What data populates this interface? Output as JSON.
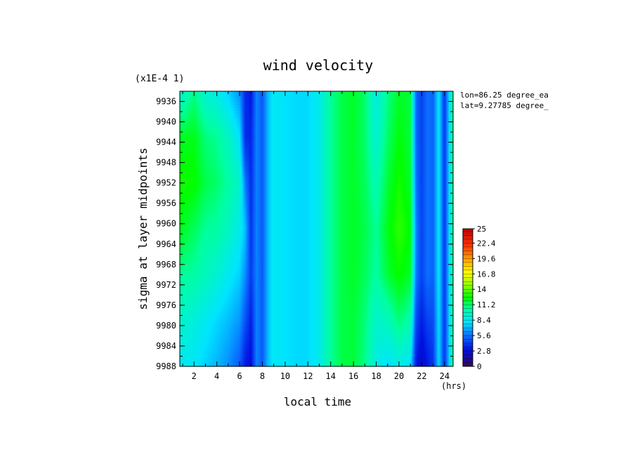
{
  "chart_data": {
    "type": "heatmap",
    "title": "wind velocity",
    "xlabel": "local time",
    "ylabel": "sigma at layer midpoints",
    "x_unit_label": "(hrs)",
    "y_scale_label": "(x1E-4 1)",
    "annotations": [
      "lon=86.25 degree_ea",
      "lat=9.27785 degree_"
    ],
    "xlim": [
      0.75,
      24.75
    ],
    "ylim": [
      9988,
      9934
    ],
    "x_ticks": [
      "2",
      "4",
      "6",
      "8",
      "10",
      "12",
      "14",
      "16",
      "18",
      "20",
      "22",
      "24"
    ],
    "y_ticks": [
      "9936",
      "9940",
      "9944",
      "9948",
      "9952",
      "9956",
      "9960",
      "9964",
      "9968",
      "9972",
      "9976",
      "9980",
      "9984",
      "9988"
    ],
    "colorbar": {
      "min": 0,
      "max": 25,
      "tick_labels": [
        "25",
        "22.4",
        "19.6",
        "16.8",
        "14",
        "11.2",
        "8.4",
        "5.6",
        "2.8",
        "0"
      ]
    },
    "x_hours": [
      0.75,
      2,
      3,
      4,
      5,
      6,
      6.5,
      7,
      7.5,
      8,
      8.5,
      9,
      10,
      11,
      12,
      13,
      14,
      15,
      16,
      17,
      18,
      19,
      20,
      21,
      21.5,
      22,
      22.5,
      23,
      23.5,
      24,
      24.75
    ],
    "profiles": [
      [
        9.0,
        10.8,
        9.2,
        8.6,
        7.6,
        6.2,
        3.8,
        3.2,
        6.0,
        5.0,
        7.2,
        8.4,
        8.0,
        7.8,
        7.8,
        8.6,
        10.6,
        11.6,
        12.0,
        11.2,
        8.8,
        10.8,
        12.0,
        11.8,
        5.4,
        4.4,
        5.6,
        5.2,
        8.2,
        4.0,
        11.0
      ],
      [
        12.0,
        12.2,
        11.0,
        10.6,
        9.6,
        8.0,
        3.8,
        3.6,
        6.0,
        5.0,
        7.2,
        8.4,
        8.0,
        7.8,
        7.8,
        8.6,
        10.6,
        11.6,
        12.0,
        11.2,
        9.2,
        11.2,
        12.4,
        11.8,
        5.4,
        4.4,
        5.6,
        5.2,
        8.2,
        4.0,
        11.0
      ],
      [
        12.8,
        12.6,
        11.6,
        11.2,
        10.4,
        9.4,
        5.8,
        3.8,
        6.0,
        5.0,
        7.2,
        8.4,
        8.0,
        7.8,
        7.8,
        8.6,
        10.6,
        11.6,
        12.0,
        11.4,
        10.0,
        11.8,
        12.8,
        12.0,
        5.6,
        4.4,
        5.6,
        5.2,
        8.2,
        4.0,
        11.0
      ],
      [
        12.2,
        11.4,
        10.6,
        10.4,
        9.6,
        8.6,
        7.2,
        4.0,
        6.0,
        5.0,
        7.2,
        8.4,
        8.0,
        7.8,
        7.8,
        8.6,
        10.6,
        11.6,
        12.0,
        11.6,
        10.6,
        12.2,
        13.2,
        12.4,
        6.0,
        4.4,
        5.6,
        5.2,
        8.2,
        4.0,
        11.0
      ],
      [
        10.6,
        10.4,
        9.8,
        9.2,
        8.4,
        7.6,
        6.2,
        4.2,
        6.0,
        5.0,
        7.2,
        8.4,
        8.0,
        7.8,
        7.8,
        8.6,
        10.6,
        11.6,
        12.0,
        11.4,
        10.4,
        11.8,
        12.6,
        12.0,
        5.8,
        4.4,
        5.6,
        5.2,
        8.2,
        4.0,
        11.0
      ],
      [
        9.4,
        9.0,
        8.4,
        7.8,
        7.2,
        6.4,
        4.8,
        3.4,
        6.0,
        5.0,
        7.2,
        8.4,
        8.0,
        7.8,
        7.8,
        8.6,
        10.6,
        11.6,
        11.8,
        11.0,
        9.4,
        9.8,
        11.0,
        10.2,
        4.6,
        3.4,
        4.4,
        4.6,
        8.0,
        4.0,
        10.8
      ],
      [
        8.4,
        8.2,
        7.6,
        7.0,
        6.2,
        5.0,
        3.2,
        2.8,
        6.0,
        5.0,
        7.2,
        8.4,
        8.0,
        7.8,
        7.8,
        8.6,
        10.6,
        11.6,
        11.8,
        10.8,
        8.8,
        8.0,
        8.6,
        8.0,
        3.2,
        2.2,
        3.2,
        4.0,
        7.8,
        4.0,
        10.6
      ]
    ]
  }
}
